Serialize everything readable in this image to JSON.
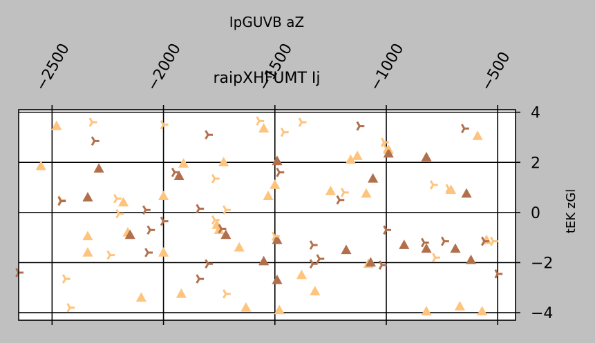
{
  "chart_data": {
    "type": "scatter",
    "title": "raipXHFUMT Ij",
    "xlabel": "IpGUVB aZ",
    "ylabel": "tEK zGl",
    "xaxis_position": "top",
    "yaxis_position": "right",
    "xlim": [
      -2650,
      -420
    ],
    "ylim": [
      -4.3,
      4.1
    ],
    "xticks": [
      -2500,
      -2000,
      -1500,
      -1000,
      -500
    ],
    "xtick_labels": [
      "−2500",
      "−2000",
      "−1500",
      "−1000",
      "−500"
    ],
    "yticks": [
      4,
      2,
      0,
      -2,
      -4
    ],
    "ytick_labels": [
      "4",
      "2",
      "0",
      "−2",
      "−4"
    ],
    "grid": true,
    "background": "#ffffff",
    "figure_background": "#c0c0c0",
    "series": [
      {
        "marker": "triangle",
        "color": "#fec47d",
        "points": [
          [
            -2480,
            3.45
          ],
          [
            -2550,
            1.85
          ],
          [
            -2340,
            -0.95
          ],
          [
            -2340,
            -1.6
          ],
          [
            -2180,
            0.4
          ],
          [
            -2160,
            -0.8
          ],
          [
            -2100,
            -3.4
          ],
          [
            -2000,
            0.65
          ],
          [
            -2000,
            -1.6
          ],
          [
            -1910,
            1.95
          ],
          [
            -1920,
            -3.25
          ],
          [
            -1730,
            2.0
          ],
          [
            -1760,
            -0.5
          ],
          [
            -1750,
            -0.7
          ],
          [
            -1660,
            -1.4
          ],
          [
            -1630,
            -3.8
          ],
          [
            -1550,
            3.35
          ],
          [
            -1530,
            0.65
          ],
          [
            -1500,
            1.1
          ],
          [
            -1480,
            -3.9
          ],
          [
            -1380,
            -2.5
          ],
          [
            -1320,
            -3.15
          ],
          [
            -1250,
            0.85
          ],
          [
            -1160,
            2.1
          ],
          [
            -1130,
            2.25
          ],
          [
            -1090,
            0.75
          ],
          [
            -1080,
            -2.05
          ],
          [
            -990,
            2.5
          ],
          [
            -820,
            -3.95
          ],
          [
            -710,
            0.9
          ],
          [
            -670,
            -3.75
          ],
          [
            -590,
            3.05
          ],
          [
            -570,
            -3.95
          ],
          [
            -550,
            -1.1
          ]
        ]
      },
      {
        "marker": "triangle",
        "color": "#b1704b",
        "points": [
          [
            -2290,
            1.75
          ],
          [
            -2340,
            0.6
          ],
          [
            -2150,
            -0.9
          ],
          [
            -1930,
            1.45
          ],
          [
            -1720,
            -0.9
          ],
          [
            -1550,
            -1.95
          ],
          [
            -1490,
            2.05
          ],
          [
            -1490,
            -1.1
          ],
          [
            -1490,
            -2.7
          ],
          [
            -1180,
            -1.5
          ],
          [
            -1060,
            1.35
          ],
          [
            -1070,
            -2.0
          ],
          [
            -990,
            2.35
          ],
          [
            -920,
            -1.3
          ],
          [
            -820,
            2.2
          ],
          [
            -820,
            -1.45
          ],
          [
            -690,
            -1.45
          ],
          [
            -640,
            0.75
          ],
          [
            -620,
            -1.9
          ]
        ]
      },
      {
        "marker": "tri_right",
        "color": "#fec47d",
        "points": [
          [
            -2460,
            0.5
          ],
          [
            -2440,
            -2.65
          ],
          [
            -2420,
            -3.8
          ],
          [
            -2320,
            3.6
          ],
          [
            -2240,
            -1.7
          ],
          [
            -2210,
            0.55
          ],
          [
            -2200,
            -0.05
          ],
          [
            -2000,
            3.5
          ],
          [
            -1770,
            1.35
          ],
          [
            -1770,
            -0.3
          ],
          [
            -1720,
            0.1
          ],
          [
            -1720,
            -3.25
          ],
          [
            -1570,
            3.65
          ],
          [
            -1500,
            -0.95
          ],
          [
            -1460,
            3.2
          ],
          [
            -1380,
            3.6
          ],
          [
            -1190,
            0.8
          ],
          [
            -1010,
            2.8
          ],
          [
            -1000,
            2.55
          ],
          [
            -790,
            1.1
          ],
          [
            -780,
            -1.8
          ],
          [
            -720,
            0.95
          ],
          [
            -520,
            -1.15
          ]
        ]
      },
      {
        "marker": "tri_right",
        "color": "#b1704b",
        "points": [
          [
            -2650,
            -2.4
          ],
          [
            -2460,
            0.45
          ],
          [
            -2310,
            2.85
          ],
          [
            -2070,
            -1.6
          ],
          [
            -2080,
            0.1
          ],
          [
            -2060,
            -0.7
          ],
          [
            -2000,
            -0.35
          ],
          [
            -1950,
            1.6
          ],
          [
            -1840,
            -2.65
          ],
          [
            -1800,
            -2.05
          ],
          [
            -1800,
            3.1
          ],
          [
            -1840,
            0.15
          ],
          [
            -1740,
            -0.65
          ],
          [
            -1480,
            1.6
          ],
          [
            -1330,
            -1.3
          ],
          [
            -1330,
            -2.05
          ],
          [
            -1300,
            -1.85
          ],
          [
            -1210,
            0.5
          ],
          [
            -1120,
            3.45
          ],
          [
            -1000,
            -0.7
          ],
          [
            -1020,
            -2.1
          ],
          [
            -830,
            -1.2
          ],
          [
            -740,
            -1.15
          ],
          [
            -650,
            3.35
          ],
          [
            -560,
            -1.15
          ],
          [
            -500,
            -2.45
          ]
        ]
      }
    ]
  }
}
